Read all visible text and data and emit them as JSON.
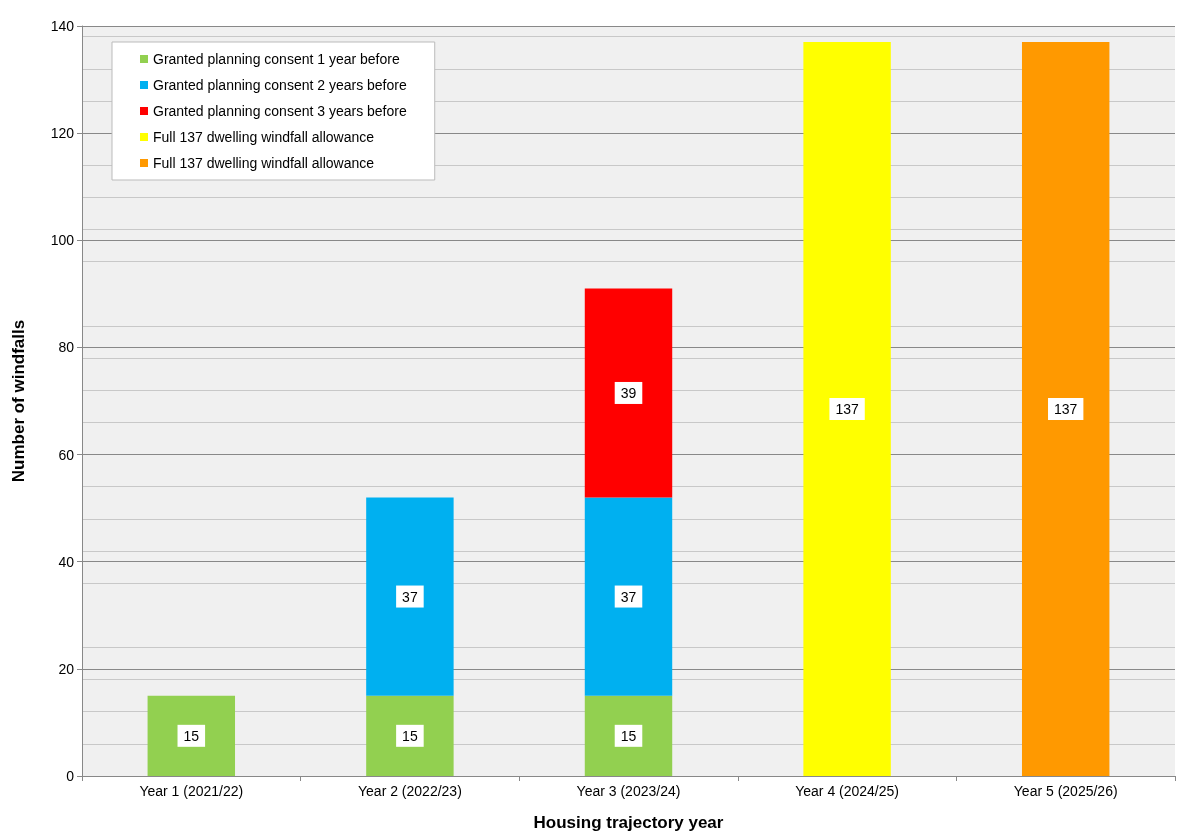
{
  "chart_data": {
    "type": "bar",
    "stacked": true,
    "xlabel": "Housing trajectory year",
    "ylabel": "Number of windfalls",
    "categories": [
      "Year 1 (2021/22)",
      "Year 2 (2022/23)",
      "Year 3 (2023/24)",
      "Year 4 (2024/25)",
      "Year 5 (2025/26)"
    ],
    "series": [
      {
        "name": "Granted planning consent 1 year before",
        "color": "#92d050",
        "values": [
          15,
          15,
          15,
          null,
          null
        ]
      },
      {
        "name": "Granted planning consent 2 years before",
        "color": "#00b0f0",
        "values": [
          null,
          37,
          37,
          null,
          null
        ]
      },
      {
        "name": "Granted planning consent 3 years before",
        "color": "#ff0000",
        "values": [
          null,
          null,
          39,
          null,
          null
        ]
      },
      {
        "name": "Full 137 dwelling windfall allowance",
        "color": "#ffff00",
        "values": [
          null,
          null,
          null,
          137,
          null
        ]
      },
      {
        "name": "Full 137 dwelling windfall allowance",
        "color": "#ff9900",
        "values": [
          null,
          null,
          null,
          null,
          137
        ]
      }
    ],
    "ylim": [
      0,
      140
    ],
    "yticks": [
      0,
      20,
      40,
      60,
      80,
      100,
      120,
      140
    ],
    "grid": "y",
    "legend": "top left",
    "data_labels": true
  }
}
